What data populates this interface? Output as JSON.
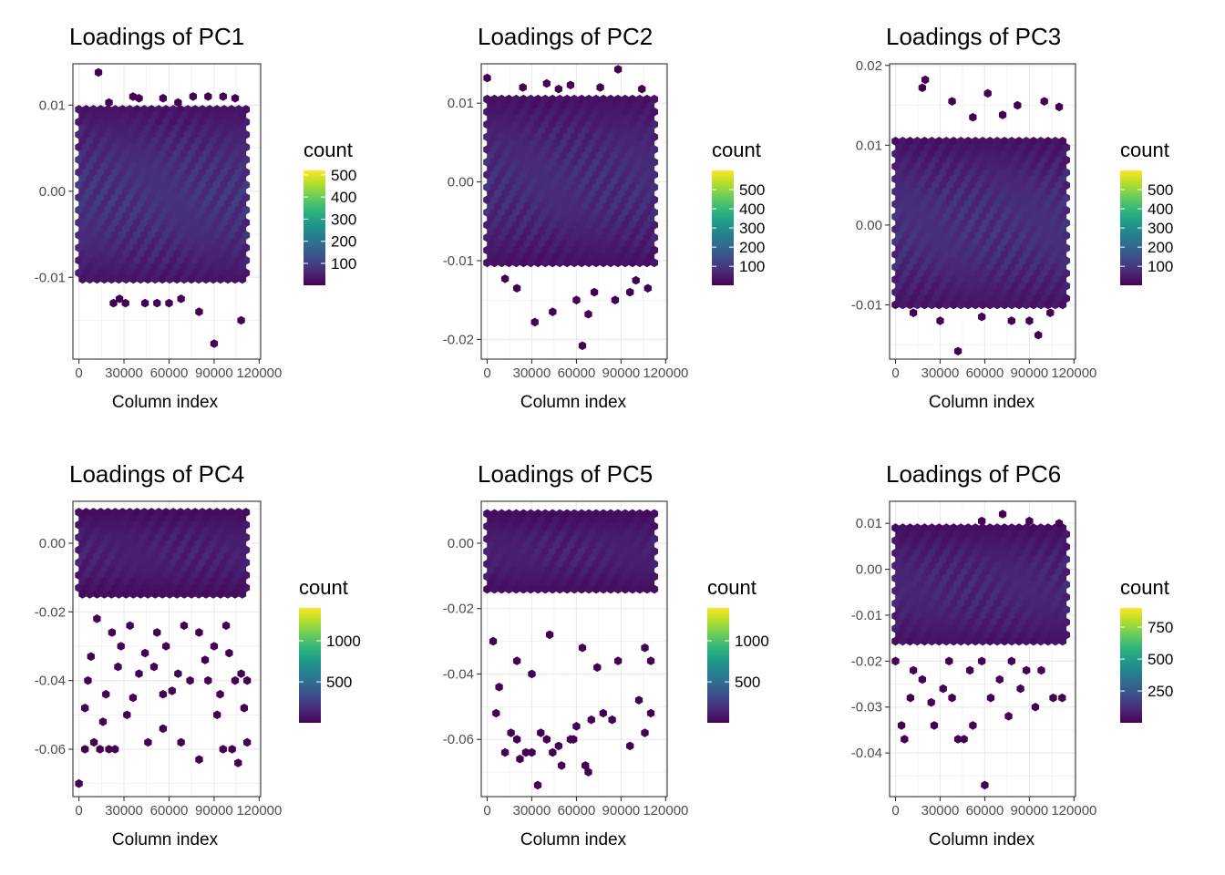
{
  "colors": {
    "background": "#ffffff",
    "panel_border": "#333333",
    "grid": "#ebebeb",
    "text": "#000000",
    "tick_text": "#4d4d4d",
    "viridis": [
      "#440154",
      "#482878",
      "#3e4989",
      "#31688e",
      "#26828e",
      "#1f9e89",
      "#35b779",
      "#6ece58",
      "#b5de2b",
      "#fde725"
    ]
  },
  "chart_data": [
    {
      "type": "hexbin",
      "title": "Loadings of PC1",
      "xlabel": "Column index",
      "ylabel": "",
      "x_ticks": [
        0,
        30000,
        60000,
        90000,
        120000
      ],
      "x_tick_labels": [
        "0",
        "30000",
        "60000",
        "90000",
        "120000"
      ],
      "xlim": [
        -4000,
        121000
      ],
      "y_ticks": [
        -0.01,
        0.0,
        0.01
      ],
      "y_tick_labels": [
        "-0.01",
        "0.00",
        "0.01"
      ],
      "ylim": [
        -0.0195,
        0.0148
      ],
      "grid": true,
      "legend": {
        "title": "count",
        "position": "right",
        "ticks": [
          100,
          200,
          300,
          400,
          500
        ],
        "tick_labels": [
          "100",
          "200",
          "300",
          "400",
          "500"
        ],
        "range": [
          1,
          520
        ]
      },
      "core": {
        "x_range": [
          0,
          113000
        ],
        "y_range": [
          -0.0105,
          0.0095
        ],
        "typical_count": 55
      },
      "points": [
        [
          13000,
          0.0138
        ],
        [
          23000,
          -0.013
        ],
        [
          31000,
          -0.013
        ],
        [
          44000,
          -0.013
        ],
        [
          52000,
          -0.013
        ],
        [
          60000,
          -0.013
        ],
        [
          80000,
          -0.014
        ],
        [
          90000,
          -0.0177
        ],
        [
          108000,
          -0.015
        ],
        [
          27000,
          -0.0125
        ],
        [
          68000,
          -0.0125
        ],
        [
          36000,
          0.011
        ],
        [
          40000,
          0.0108
        ],
        [
          56000,
          0.0108
        ],
        [
          76000,
          0.011
        ],
        [
          86000,
          0.011
        ],
        [
          96000,
          0.011
        ],
        [
          104000,
          0.0108
        ],
        [
          20000,
          0.0103
        ],
        [
          66000,
          0.0103
        ]
      ]
    },
    {
      "type": "hexbin",
      "title": "Loadings of PC2",
      "xlabel": "Column index",
      "ylabel": "",
      "x_ticks": [
        0,
        30000,
        60000,
        90000,
        120000
      ],
      "x_tick_labels": [
        "0",
        "30000",
        "60000",
        "90000",
        "120000"
      ],
      "xlim": [
        -4000,
        121000
      ],
      "y_ticks": [
        -0.02,
        -0.01,
        0.0,
        0.01
      ],
      "y_tick_labels": [
        "-0.02",
        "-0.01",
        "0.00",
        "0.01"
      ],
      "ylim": [
        -0.0225,
        0.015
      ],
      "grid": true,
      "legend": {
        "title": "count",
        "position": "right",
        "ticks": [
          100,
          200,
          300,
          400,
          500
        ],
        "tick_labels": [
          "100",
          "200",
          "300",
          "400",
          "500"
        ],
        "range": [
          1,
          600
        ]
      },
      "core": {
        "x_range": [
          0,
          113000
        ],
        "y_range": [
          -0.0105,
          0.0105
        ],
        "typical_count": 55
      },
      "points": [
        [
          0,
          0.0132
        ],
        [
          88000,
          0.0143
        ],
        [
          40000,
          0.0125
        ],
        [
          56000,
          0.0123
        ],
        [
          32000,
          -0.0178
        ],
        [
          44000,
          -0.0165
        ],
        [
          64000,
          -0.0208
        ],
        [
          68000,
          -0.0168
        ],
        [
          72000,
          -0.014
        ],
        [
          96000,
          -0.014
        ],
        [
          108000,
          -0.0135
        ],
        [
          20000,
          -0.0135
        ],
        [
          86000,
          -0.015
        ],
        [
          60000,
          -0.015
        ],
        [
          100000,
          -0.0125
        ],
        [
          12000,
          -0.0123
        ],
        [
          24000,
          0.012
        ],
        [
          48000,
          0.0118
        ],
        [
          76000,
          0.012
        ],
        [
          104000,
          0.0118
        ]
      ]
    },
    {
      "type": "hexbin",
      "title": "Loadings of PC3",
      "xlabel": "Column index",
      "ylabel": "",
      "x_ticks": [
        0,
        30000,
        60000,
        90000,
        120000
      ],
      "x_tick_labels": [
        "0",
        "30000",
        "60000",
        "90000",
        "120000"
      ],
      "xlim": [
        -4000,
        121000
      ],
      "y_ticks": [
        -0.01,
        0.0,
        0.01,
        0.02
      ],
      "y_tick_labels": [
        "-0.01",
        "0.00",
        "0.01",
        "0.02"
      ],
      "ylim": [
        -0.0168,
        0.0202
      ],
      "grid": true,
      "legend": {
        "title": "count",
        "position": "right",
        "ticks": [
          100,
          200,
          300,
          400,
          500
        ],
        "tick_labels": [
          "100",
          "200",
          "300",
          "400",
          "500"
        ],
        "range": [
          1,
          600
        ]
      },
      "core": {
        "x_range": [
          0,
          115000
        ],
        "y_range": [
          -0.0105,
          0.0105
        ],
        "typical_count": 60
      },
      "points": [
        [
          20000,
          0.0182
        ],
        [
          18000,
          0.0172
        ],
        [
          62000,
          0.0165
        ],
        [
          100000,
          0.0155
        ],
        [
          110000,
          0.0148
        ],
        [
          38000,
          0.0155
        ],
        [
          82000,
          0.015
        ],
        [
          52000,
          0.0135
        ],
        [
          72000,
          0.0138
        ],
        [
          42000,
          -0.0158
        ],
        [
          90000,
          -0.012
        ],
        [
          96000,
          -0.0138
        ],
        [
          78000,
          -0.012
        ],
        [
          12000,
          -0.011
        ],
        [
          30000,
          -0.012
        ],
        [
          104000,
          -0.011
        ],
        [
          58000,
          -0.0115
        ]
      ]
    },
    {
      "type": "hexbin",
      "title": "Loadings of PC4",
      "xlabel": "Column index",
      "ylabel": "",
      "x_ticks": [
        0,
        30000,
        60000,
        90000,
        120000
      ],
      "x_tick_labels": [
        "0",
        "30000",
        "60000",
        "90000",
        "120000"
      ],
      "xlim": [
        -4000,
        121000
      ],
      "y_ticks": [
        -0.06,
        -0.04,
        -0.02,
        0.0
      ],
      "y_tick_labels": [
        "-0.06",
        "-0.04",
        "-0.02",
        "0.00"
      ],
      "ylim": [
        -0.0738,
        0.0122
      ],
      "grid": true,
      "legend": {
        "title": "count",
        "position": "right",
        "ticks": [
          500,
          1000
        ],
        "tick_labels": [
          "500",
          "1000"
        ],
        "range": [
          1,
          1400
        ]
      },
      "core": {
        "x_range": [
          0,
          113000
        ],
        "y_range": [
          -0.015,
          0.009
        ],
        "typical_count": 90
      },
      "points": [
        [
          0,
          -0.07
        ],
        [
          4000,
          -0.048
        ],
        [
          8000,
          -0.033
        ],
        [
          4000,
          -0.06
        ],
        [
          10000,
          -0.058
        ],
        [
          14000,
          -0.06
        ],
        [
          20000,
          -0.06
        ],
        [
          24000,
          -0.06
        ],
        [
          18000,
          -0.044
        ],
        [
          16000,
          -0.052
        ],
        [
          32000,
          -0.05
        ],
        [
          36000,
          -0.045
        ],
        [
          46000,
          -0.058
        ],
        [
          56000,
          -0.054
        ],
        [
          62000,
          -0.043
        ],
        [
          68000,
          -0.058
        ],
        [
          80000,
          -0.063
        ],
        [
          92000,
          -0.05
        ],
        [
          96000,
          -0.06
        ],
        [
          102000,
          -0.06
        ],
        [
          106000,
          -0.064
        ],
        [
          112000,
          -0.058
        ],
        [
          110000,
          -0.048
        ],
        [
          104000,
          -0.04
        ],
        [
          108000,
          -0.038
        ],
        [
          28000,
          -0.03
        ],
        [
          40000,
          -0.038
        ],
        [
          44000,
          -0.032
        ],
        [
          50000,
          -0.036
        ],
        [
          58000,
          -0.03
        ],
        [
          66000,
          -0.038
        ],
        [
          74000,
          -0.04
        ],
        [
          84000,
          -0.034
        ],
        [
          90000,
          -0.03
        ],
        [
          98000,
          -0.024
        ],
        [
          70000,
          -0.024
        ],
        [
          52000,
          -0.026
        ],
        [
          34000,
          -0.024
        ],
        [
          22000,
          -0.026
        ],
        [
          12000,
          -0.022
        ],
        [
          80000,
          -0.026
        ],
        [
          100000,
          -0.032
        ],
        [
          112000,
          -0.04
        ],
        [
          56000,
          -0.044
        ],
        [
          86000,
          -0.04
        ],
        [
          6000,
          -0.04
        ],
        [
          26000,
          -0.036
        ],
        [
          94000,
          -0.044
        ]
      ]
    },
    {
      "type": "hexbin",
      "title": "Loadings of PC5",
      "xlabel": "Column index",
      "ylabel": "",
      "x_ticks": [
        0,
        30000,
        60000,
        90000,
        120000
      ],
      "x_tick_labels": [
        "0",
        "30000",
        "60000",
        "90000",
        "120000"
      ],
      "xlim": [
        -4000,
        121000
      ],
      "y_ticks": [
        -0.06,
        -0.04,
        -0.02,
        0.0
      ],
      "y_tick_labels": [
        "-0.06",
        "-0.04",
        "-0.02",
        "0.00"
      ],
      "ylim": [
        -0.0775,
        0.0128
      ],
      "grid": true,
      "legend": {
        "title": "count",
        "position": "right",
        "ticks": [
          500,
          1000
        ],
        "tick_labels": [
          "500",
          "1000"
        ],
        "range": [
          1,
          1400
        ]
      },
      "core": {
        "x_range": [
          0,
          113000
        ],
        "y_range": [
          -0.015,
          0.009
        ],
        "typical_count": 90
      },
      "points": [
        [
          4000,
          -0.03
        ],
        [
          6000,
          -0.052
        ],
        [
          12000,
          -0.064
        ],
        [
          20000,
          -0.06
        ],
        [
          22000,
          -0.066
        ],
        [
          30000,
          -0.064
        ],
        [
          36000,
          -0.058
        ],
        [
          34000,
          -0.074
        ],
        [
          44000,
          -0.064
        ],
        [
          50000,
          -0.068
        ],
        [
          56000,
          -0.06
        ],
        [
          60000,
          -0.056
        ],
        [
          66000,
          -0.068
        ],
        [
          68000,
          -0.07
        ],
        [
          78000,
          -0.052
        ],
        [
          84000,
          -0.054
        ],
        [
          96000,
          -0.062
        ],
        [
          106000,
          -0.058
        ],
        [
          110000,
          -0.052
        ],
        [
          106000,
          -0.032
        ],
        [
          110000,
          -0.036
        ],
        [
          88000,
          -0.036
        ],
        [
          74000,
          -0.038
        ],
        [
          64000,
          -0.032
        ],
        [
          42000,
          -0.028
        ],
        [
          30000,
          -0.04
        ],
        [
          20000,
          -0.036
        ],
        [
          8000,
          -0.044
        ],
        [
          16000,
          -0.058
        ],
        [
          48000,
          -0.062
        ],
        [
          58000,
          -0.06
        ],
        [
          40000,
          -0.06
        ],
        [
          26000,
          -0.064
        ],
        [
          70000,
          -0.054
        ],
        [
          102000,
          -0.048
        ]
      ]
    },
    {
      "type": "hexbin",
      "title": "Loadings of PC6",
      "xlabel": "Column index",
      "ylabel": "",
      "x_ticks": [
        0,
        30000,
        60000,
        90000,
        120000
      ],
      "x_tick_labels": [
        "0",
        "30000",
        "60000",
        "90000",
        "120000"
      ],
      "xlim": [
        -4000,
        121000
      ],
      "y_ticks": [
        -0.04,
        -0.03,
        -0.02,
        -0.01,
        0.0,
        0.01
      ],
      "y_tick_labels": [
        "-0.04",
        "-0.03",
        "-0.02",
        "-0.01",
        "0.00",
        "0.01"
      ],
      "ylim": [
        -0.0495,
        0.0148
      ],
      "grid": true,
      "legend": {
        "title": "count",
        "position": "right",
        "ticks": [
          250,
          500,
          750
        ],
        "tick_labels": [
          "250",
          "500",
          "750"
        ],
        "range": [
          1,
          900
        ]
      },
      "core": {
        "x_range": [
          0,
          115000
        ],
        "y_range": [
          -0.017,
          0.009
        ],
        "typical_count": 70
      },
      "points": [
        [
          6000,
          -0.037
        ],
        [
          4000,
          -0.034
        ],
        [
          10000,
          -0.028
        ],
        [
          12000,
          -0.022
        ],
        [
          24000,
          -0.029
        ],
        [
          26000,
          -0.034
        ],
        [
          32000,
          -0.026
        ],
        [
          38000,
          -0.028
        ],
        [
          42000,
          -0.037
        ],
        [
          46000,
          -0.037
        ],
        [
          52000,
          -0.034
        ],
        [
          60000,
          -0.047
        ],
        [
          64000,
          -0.028
        ],
        [
          70000,
          -0.024
        ],
        [
          76000,
          -0.032
        ],
        [
          84000,
          -0.026
        ],
        [
          94000,
          -0.03
        ],
        [
          106000,
          -0.028
        ],
        [
          112000,
          -0.028
        ],
        [
          98000,
          -0.022
        ],
        [
          88000,
          -0.022
        ],
        [
          58000,
          -0.02
        ],
        [
          36000,
          -0.02
        ],
        [
          18000,
          -0.024
        ],
        [
          0,
          -0.02
        ],
        [
          72000,
          0.012
        ],
        [
          58000,
          0.0105
        ],
        [
          90000,
          0.0105
        ],
        [
          110000,
          0.01
        ],
        [
          78000,
          -0.02
        ],
        [
          50000,
          -0.022
        ]
      ]
    }
  ]
}
